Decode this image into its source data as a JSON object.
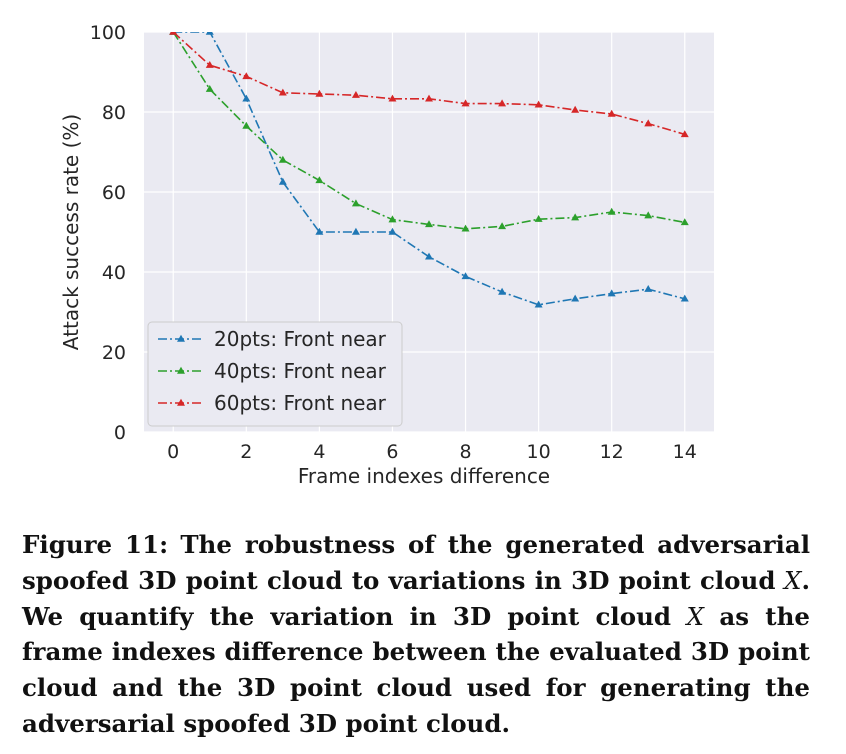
{
  "chart_data": {
    "type": "line",
    "xlabel": "Frame indexes difference",
    "ylabel": "Attack success rate (%)",
    "xlim": [
      -0.8,
      14.8
    ],
    "ylim": [
      0,
      100
    ],
    "xticks": [
      0,
      2,
      4,
      6,
      8,
      10,
      12,
      14
    ],
    "yticks": [
      0,
      20,
      40,
      60,
      80,
      100
    ],
    "grid": true,
    "legend_position": "lower-left",
    "background": "#eaeaf2",
    "series": [
      {
        "name": "20pts: Front near",
        "color": "#1f77b4",
        "x": [
          0,
          1,
          2,
          3,
          4,
          5,
          6,
          7,
          8,
          9,
          10,
          11,
          12,
          13,
          14
        ],
        "y": [
          100,
          100,
          83.3,
          62.5,
          50,
          50,
          50,
          43.8,
          38.9,
          35,
          31.8,
          33.3,
          34.6,
          35.7,
          33.3
        ]
      },
      {
        "name": "40pts: Front near",
        "color": "#2ca02c",
        "x": [
          0,
          1,
          2,
          3,
          4,
          5,
          6,
          7,
          8,
          9,
          10,
          11,
          12,
          13,
          14
        ],
        "y": [
          100,
          85.7,
          76.5,
          68,
          62.9,
          57.1,
          53.1,
          51.9,
          50.8,
          51.4,
          53.2,
          53.6,
          55,
          54.1,
          52.4
        ]
      },
      {
        "name": "60pts: Front near",
        "color": "#d62728",
        "x": [
          0,
          1,
          2,
          3,
          4,
          5,
          6,
          7,
          8,
          9,
          10,
          11,
          12,
          13,
          14
        ],
        "y": [
          100,
          91.7,
          88.9,
          84.8,
          84.5,
          84.2,
          83.3,
          83.3,
          82.1,
          82.1,
          81.8,
          80.5,
          79.5,
          77.1,
          74.4
        ]
      }
    ]
  },
  "caption": {
    "figure_number": "Figure 11:",
    "text_part1": "The robustness of the generated adversarial spoofed 3D point cloud to variations in 3D point cloud",
    "var1": "X",
    "text_part2": ". We quantify the variation in 3D point cloud",
    "var2": "X",
    "text_part3": "as the frame indexes difference between the evaluated 3D point cloud and the 3D point cloud used for generating the adversarial spoofed 3D point cloud."
  }
}
